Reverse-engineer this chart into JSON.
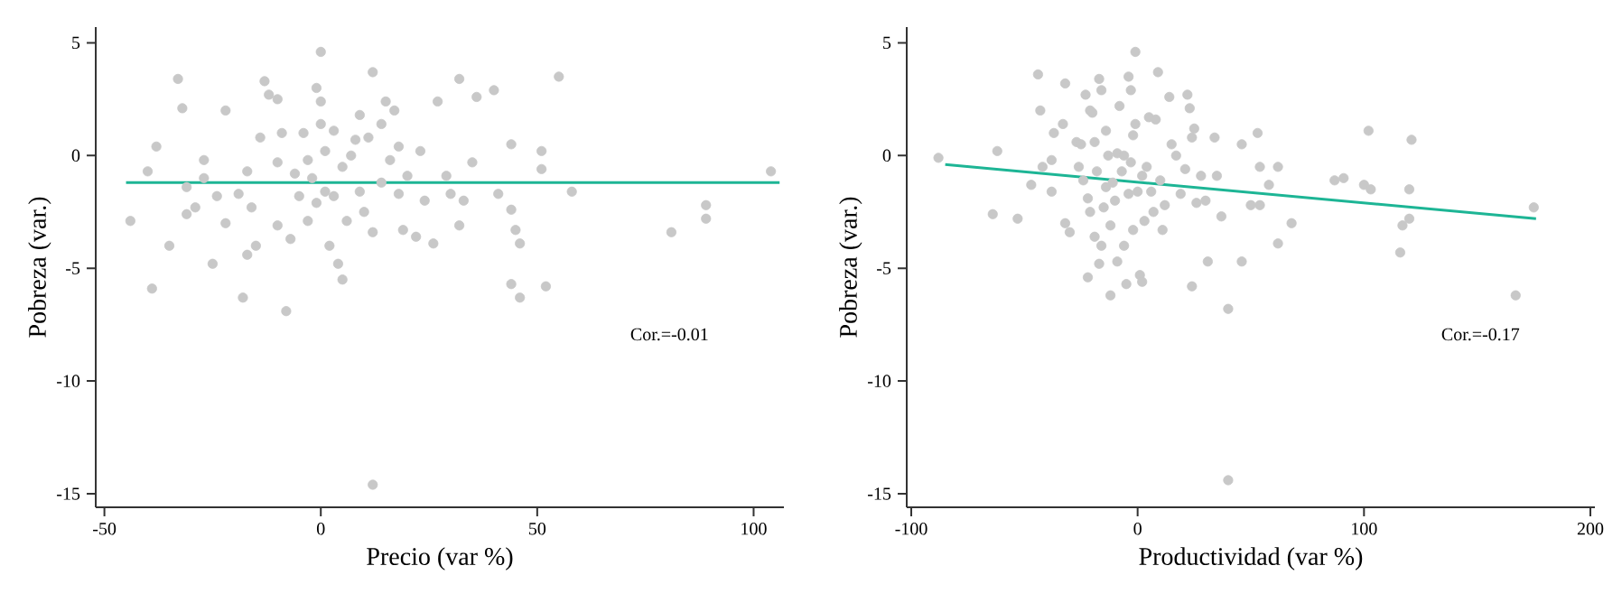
{
  "chart_data": [
    {
      "type": "scatter",
      "xlabel": "Precio (var %)",
      "ylabel": "Pobreza (var.)",
      "xlim": [
        -52,
        107
      ],
      "ylim": [
        -15.6,
        5.7
      ],
      "xticks": [
        -50,
        0,
        50,
        100
      ],
      "yticks": [
        -15,
        -10,
        -5,
        0,
        5
      ],
      "annotations": [
        "Cor.=-0.01"
      ],
      "series": [
        {
          "color": "#c8c8c8",
          "marker": "circle",
          "x": [
            -44,
            -40,
            -38,
            -39,
            -33,
            -32,
            -35,
            -31,
            -31,
            -29,
            -27,
            -27,
            -25,
            -24,
            -22,
            -22,
            -19,
            -18,
            -17,
            -17,
            -16,
            -15,
            -14,
            -13,
            -12,
            -10,
            -10,
            -10,
            -9,
            -8,
            -7,
            -6,
            -5,
            -4,
            -3,
            -3,
            -2,
            -1,
            -1,
            0,
            0,
            0,
            1,
            1,
            2,
            3,
            3,
            4,
            5,
            5,
            6,
            7,
            8,
            9,
            9,
            10,
            11,
            12,
            12,
            12,
            14,
            14,
            15,
            16,
            17,
            18,
            18,
            19,
            20,
            22,
            23,
            24,
            26,
            27,
            29,
            30,
            32,
            32,
            33,
            35,
            36,
            40,
            41,
            44,
            44,
            44,
            45,
            46,
            46,
            51,
            51,
            52,
            55,
            58,
            81,
            89,
            89,
            104
          ],
          "values": [
            -2.9,
            -0.7,
            0.4,
            -5.9,
            3.4,
            2.1,
            -4,
            -2.6,
            -1.4,
            -2.3,
            -0.2,
            -1,
            -4.8,
            -1.8,
            2,
            -3,
            -1.7,
            -6.3,
            -4.4,
            -0.7,
            -2.3,
            -4,
            0.8,
            3.3,
            2.7,
            2.5,
            -0.3,
            -3.1,
            1,
            -6.9,
            -3.7,
            -0.8,
            -1.8,
            1,
            -0.2,
            -2.9,
            -1,
            3,
            -2.1,
            4.6,
            2.4,
            1.4,
            -1.6,
            0.2,
            -4,
            1.1,
            -1.8,
            -4.8,
            -0.5,
            -5.5,
            -2.9,
            0,
            0.7,
            1.8,
            -1.6,
            -2.5,
            0.8,
            -14.6,
            3.7,
            -3.4,
            1.4,
            -1.2,
            2.4,
            -0.2,
            2,
            -1.7,
            0.4,
            -3.3,
            -0.9,
            -3.6,
            0.2,
            -2,
            -3.9,
            2.4,
            -0.9,
            -1.7,
            -3.1,
            3.4,
            -2,
            -0.3,
            2.6,
            2.9,
            -1.7,
            0.5,
            -2.4,
            -5.7,
            -3.3,
            -3.9,
            -6.3,
            0.2,
            -0.6,
            -5.8,
            3.5,
            -1.6,
            -3.4,
            -2.2,
            -2.8,
            -0.7
          ]
        },
        {
          "type": "line",
          "color": "#1db595",
          "marker": "none",
          "x": [
            -45,
            106
          ],
          "values": [
            -1.2,
            -1.2
          ]
        }
      ]
    },
    {
      "type": "scatter",
      "xlabel": "Productividad (var %)",
      "ylabel": "Pobreza (var.)",
      "xlim": [
        -102,
        202
      ],
      "ylim": [
        -15.6,
        5.7
      ],
      "xticks": [
        -100,
        0,
        100,
        200
      ],
      "yticks": [
        -15,
        -10,
        -5,
        0,
        5
      ],
      "annotations": [
        "Cor.=-0.17"
      ],
      "series": [
        {
          "color": "#c8c8c8",
          "marker": "circle",
          "x": [
            -88,
            -64,
            -62,
            -53,
            -47,
            -44,
            -43,
            -42,
            -38,
            -38,
            -37,
            -33,
            -32,
            -32,
            -30,
            -27,
            -26,
            -25,
            -24,
            -23,
            -22,
            -22,
            -21,
            -21,
            -20,
            -19,
            -19,
            -18,
            -17,
            -17,
            -16,
            -16,
            -15,
            -14,
            -14,
            -13,
            -12,
            -12,
            -11,
            -10,
            -9,
            -9,
            -8,
            -7,
            -6,
            -6,
            -5,
            -4,
            -4,
            -3,
            -3,
            -2,
            -2,
            -1,
            -1,
            0,
            1,
            2,
            2,
            3,
            4,
            5,
            6,
            7,
            8,
            9,
            10,
            11,
            12,
            14,
            15,
            17,
            19,
            21,
            22,
            23,
            24,
            24,
            25,
            26,
            28,
            30,
            31,
            34,
            35,
            37,
            40,
            46,
            46,
            50,
            53,
            54,
            54,
            58,
            62,
            62,
            68,
            87,
            91,
            100,
            102,
            103,
            116,
            117,
            120,
            120,
            121,
            167,
            175,
            40
          ],
          "values": [
            -0.1,
            -2.6,
            0.2,
            -2.8,
            -1.3,
            3.6,
            2,
            -0.5,
            -1.6,
            -0.2,
            1,
            1.4,
            3.2,
            -3,
            -3.4,
            0.6,
            -0.5,
            0.5,
            -1.1,
            2.7,
            -1.9,
            -5.4,
            2,
            -2.5,
            1.9,
            -3.6,
            0.6,
            -0.7,
            -4.8,
            3.4,
            2.9,
            -4,
            -2.3,
            1.1,
            -1.4,
            0,
            -6.2,
            -3.1,
            -1.2,
            -2,
            0.1,
            -4.7,
            2.2,
            -0.7,
            0,
            -4,
            -5.7,
            3.5,
            -1.7,
            2.9,
            -0.3,
            0.9,
            -3.3,
            1.4,
            4.6,
            -1.6,
            -5.3,
            -5.6,
            -0.9,
            -2.9,
            -0.5,
            1.7,
            -1.6,
            -2.5,
            1.6,
            3.7,
            -1.1,
            -3.3,
            -2.2,
            2.6,
            0.5,
            0,
            -1.7,
            -0.6,
            2.7,
            2.1,
            -5.8,
            0.8,
            1.2,
            -2.1,
            -0.9,
            -2,
            -4.7,
            0.8,
            -0.9,
            -2.7,
            -6.8,
            0.5,
            -4.7,
            -2.2,
            1,
            -2.2,
            -0.5,
            -1.3,
            -3.9,
            -0.5,
            -3,
            -1.1,
            -1,
            -1.3,
            1.1,
            -1.5,
            -4.3,
            -3.1,
            -2.8,
            -1.5,
            0.7,
            -6.2,
            -2.3,
            -14.4
          ]
        },
        {
          "type": "line",
          "color": "#1db595",
          "marker": "none",
          "x": [
            -85,
            176
          ],
          "values": [
            -0.4,
            -2.8
          ]
        }
      ]
    }
  ]
}
